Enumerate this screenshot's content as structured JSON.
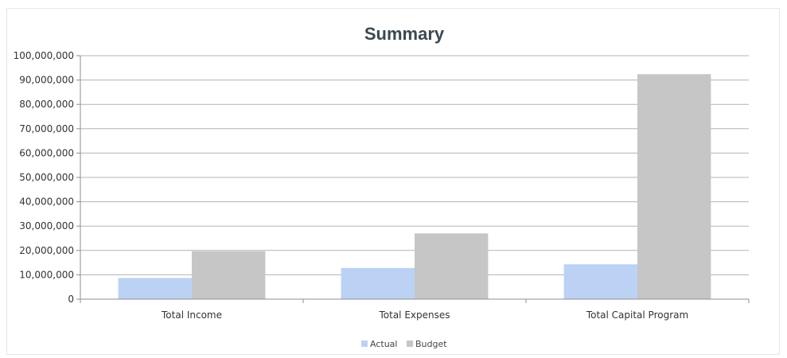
{
  "colors": {
    "actual": "#bcd2f4",
    "budget": "#c6c6c6",
    "grid": "#b3b3b3",
    "axis": "#8f8f8f"
  },
  "chart_data": {
    "type": "bar",
    "title": "Summary",
    "xlabel": "",
    "ylabel": "",
    "categories": [
      "Total Income",
      "Total Expenses",
      "Total Capital Program"
    ],
    "series": [
      {
        "name": "Actual",
        "values": [
          8700000,
          12800000,
          14300000
        ]
      },
      {
        "name": "Budget",
        "values": [
          19700000,
          27000000,
          92400000
        ]
      }
    ],
    "ylim": [
      0,
      100000000
    ],
    "y_ticks": [
      {
        "value": 0,
        "label": "0"
      },
      {
        "value": 10000000,
        "label": "10,000,000"
      },
      {
        "value": 20000000,
        "label": "20,000,000"
      },
      {
        "value": 30000000,
        "label": "30,000,000"
      },
      {
        "value": 40000000,
        "label": "40,000,000"
      },
      {
        "value": 50000000,
        "label": "50,000,000"
      },
      {
        "value": 60000000,
        "label": "60,000,000"
      },
      {
        "value": 70000000,
        "label": "70,000,000"
      },
      {
        "value": 80000000,
        "label": "80,000,000"
      },
      {
        "value": 90000000,
        "label": "90,000,000"
      },
      {
        "value": 100000000,
        "label": "100,000,000"
      }
    ],
    "grid": true,
    "legend_position": "bottom"
  }
}
